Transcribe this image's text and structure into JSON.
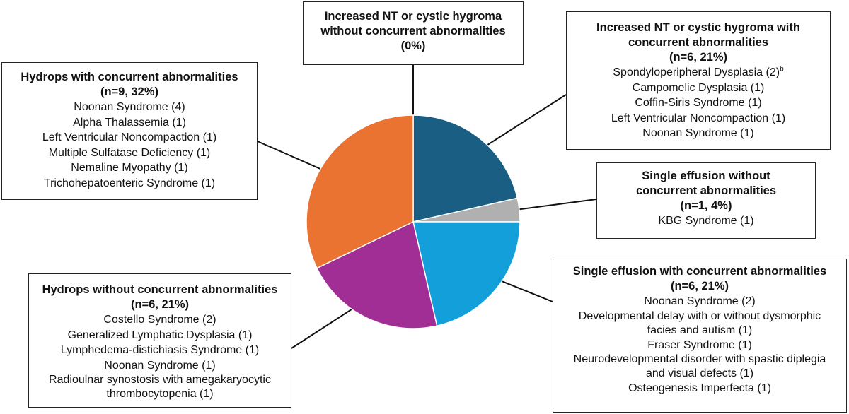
{
  "chart_data": {
    "type": "pie",
    "slices": [
      {
        "title": "Increased NT or cystic hygroma without concurrent abnormalities",
        "stat": "(0%)",
        "n": 0,
        "percent": 0,
        "color": "",
        "items": []
      },
      {
        "title": "Increased NT or cystic hygroma with concurrent abnormalities",
        "stat": "(n=6, 21%)",
        "n": 6,
        "percent": 21,
        "color": "#1b5e83",
        "items": [
          "Spondyloperipheral Dysplasia (2)",
          "Campomelic Dysplasia (1)",
          "Coffin-Siris Syndrome (1)",
          "Left Ventricular Noncompaction (1)",
          "Noonan Syndrome (1)"
        ]
      },
      {
        "title": "Single effusion without concurrent abnormalities",
        "stat": "(n=1, 4%)",
        "n": 1,
        "percent": 4,
        "color": "#b0b0b0",
        "items": [
          "KBG Syndrome (1)"
        ]
      },
      {
        "title": "Single effusion with concurrent abnormalities",
        "stat": "(n=6, 21%)",
        "n": 6,
        "percent": 21,
        "color": "#139fd9",
        "items": [
          "Noonan Syndrome (2)",
          "Developmental delay with or without dysmorphic facies and autism (1)",
          "Fraser Syndrome (1)",
          "Neurodevelopmental disorder with spastic diplegia and visual defects (1)",
          "Osteogenesis Imperfecta (1)"
        ]
      },
      {
        "title": "Hydrops without concurrent abnormalities",
        "stat": "(n=6, 21%)",
        "n": 6,
        "percent": 21,
        "color": "#a12e94",
        "items": [
          "Costello Syndrome (2)",
          "Generalized Lymphatic Dysplasia (1)",
          "Lymphedema-distichiasis Syndrome (1)",
          "Noonan Syndrome (1)",
          "Radioulnar synostosis with amegakaryocytic thrombocytopenia (1)"
        ]
      },
      {
        "title": "Hydrops with concurrent abnormalities",
        "stat": "(n=9, 32%)",
        "n": 9,
        "percent": 32,
        "color": "#ea7332",
        "items": [
          "Noonan Syndrome (4)",
          "Alpha Thalassemia (1)",
          "Left Ventricular Noncompaction (1)",
          "Multiple Sulfatase Deficiency (1)",
          "Nemaline Myopathy (1)",
          "Trichohepatoenteric Syndrome (1)"
        ]
      }
    ],
    "footnote_mark": "b",
    "footnote_item": "Spondyloperipheral Dysplasia (2)"
  }
}
